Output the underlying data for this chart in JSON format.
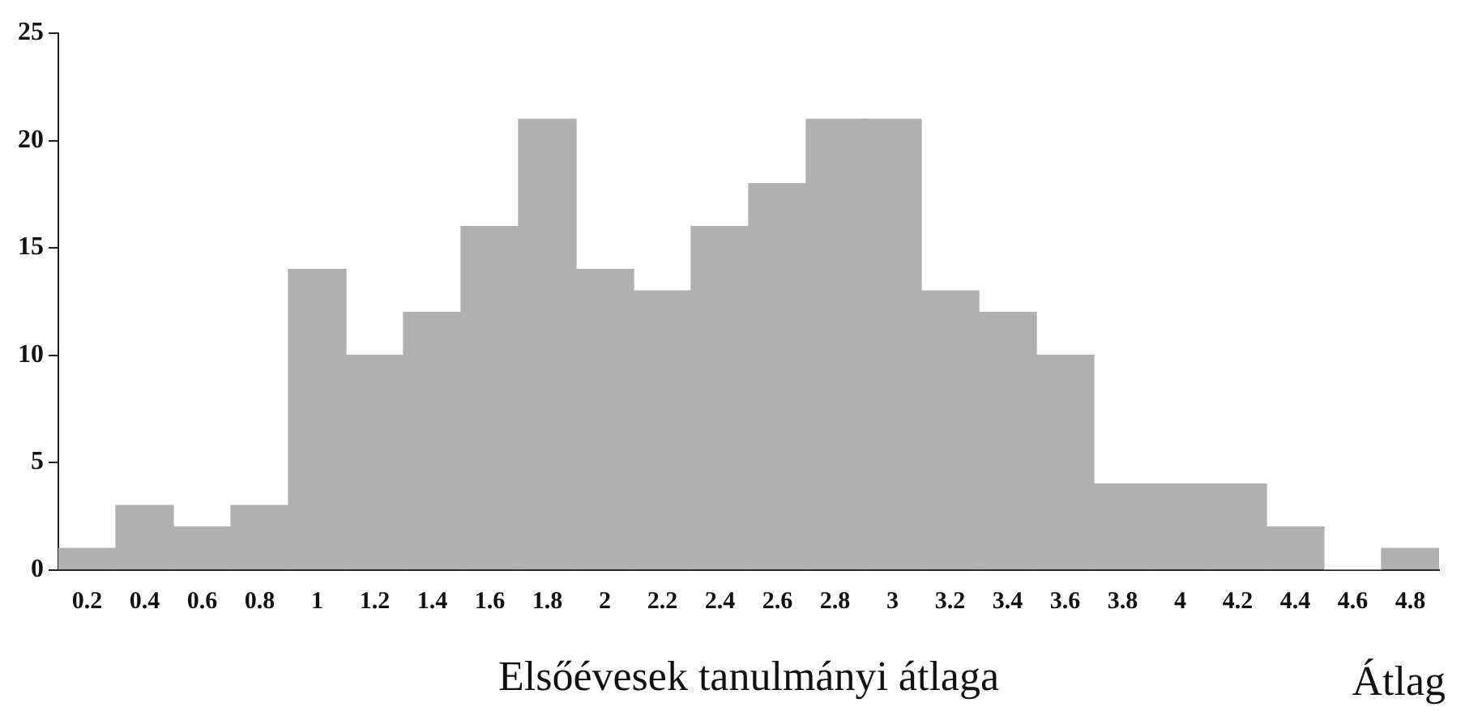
{
  "chart_data": {
    "type": "bar",
    "xlabel": "Elsőévesek tanulmányi átlaga",
    "annotations": [
      "Átlag"
    ],
    "categories": [
      "0.2",
      "0.4",
      "0.6",
      "0.8",
      "1",
      "1.2",
      "1.4",
      "1.6",
      "1.8",
      "2",
      "2.2",
      "2.4",
      "2.6",
      "2.8",
      "3",
      "3.2",
      "3.4",
      "3.6",
      "3.8",
      "4",
      "4.2",
      "4.4",
      "4.6",
      "4.8"
    ],
    "values": [
      1,
      3,
      2,
      3,
      14,
      10,
      12,
      16,
      21,
      14,
      13,
      16,
      18,
      21,
      21,
      13,
      12,
      10,
      4,
      4,
      4,
      2,
      0,
      1
    ],
    "color": "#b0b0b0",
    "ylim": [
      0,
      25
    ],
    "yticks": [
      0,
      5,
      10,
      15,
      20,
      25
    ]
  }
}
